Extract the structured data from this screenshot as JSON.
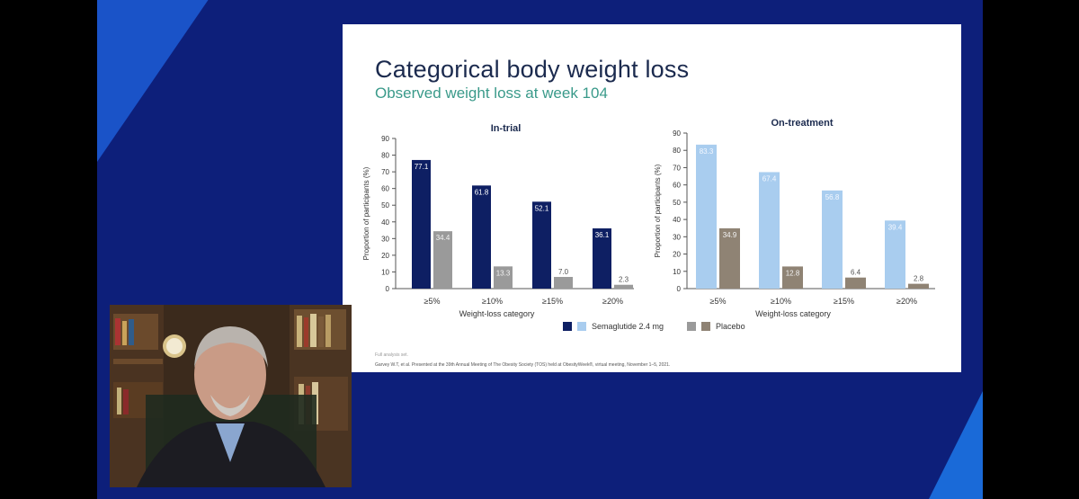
{
  "slide": {
    "title": "Categorical body weight loss",
    "subtitle": "Observed weight loss at week 104",
    "footnote_1": "Full analysis set.",
    "footnote_2": "Garvey W.T, et al. Presented at the 39th Annual Meeting of The Obesity Society (TOS) held at ObesityWeek®, virtual meeting, November 1–5, 2021."
  },
  "legend": {
    "semaglutide": "Semaglutide 2.4 mg",
    "placebo": "Placebo"
  },
  "colors": {
    "stage_bg": "#0d1f7a",
    "intrial_sema": "#0e1f63",
    "intrial_placebo": "#9a9a9a",
    "ontreat_sema": "#a9cdef",
    "ontreat_placebo": "#8f8374"
  },
  "chart_data": [
    {
      "type": "bar",
      "title": "In-trial",
      "xlabel": "Weight-loss category",
      "ylabel": "Proportion of participants (%)",
      "ylim": [
        0,
        90
      ],
      "yticks": [
        0,
        10,
        20,
        30,
        40,
        50,
        60,
        70,
        80,
        90
      ],
      "categories": [
        "≥5%",
        "≥10%",
        "≥15%",
        "≥20%"
      ],
      "series": [
        {
          "name": "Semaglutide 2.4 mg",
          "values": [
            77.1,
            61.8,
            52.1,
            36.1
          ],
          "labels": [
            "77.1",
            "61.8",
            "52.1",
            "36.1"
          ]
        },
        {
          "name": "Placebo",
          "values": [
            34.4,
            13.3,
            7.0,
            2.3
          ],
          "labels": [
            "34.4",
            "13.3",
            "7.0",
            "2.3"
          ]
        }
      ]
    },
    {
      "type": "bar",
      "title": "On-treatment",
      "xlabel": "Weight-loss category",
      "ylabel": "Proportion of participants (%)",
      "ylim": [
        0,
        90
      ],
      "yticks": [
        0,
        10,
        20,
        30,
        40,
        50,
        60,
        70,
        80,
        90
      ],
      "categories": [
        "≥5%",
        "≥10%",
        "≥15%",
        "≥20%"
      ],
      "series": [
        {
          "name": "Semaglutide 2.4 mg",
          "values": [
            83.3,
            67.4,
            56.8,
            39.4
          ],
          "labels": [
            "83.3",
            "67.4",
            "56.8",
            "39.4"
          ]
        },
        {
          "name": "Placebo",
          "values": [
            34.9,
            12.8,
            6.4,
            2.8
          ],
          "labels": [
            "34.9",
            "12.8",
            "6.4",
            "2.8"
          ]
        }
      ]
    }
  ]
}
